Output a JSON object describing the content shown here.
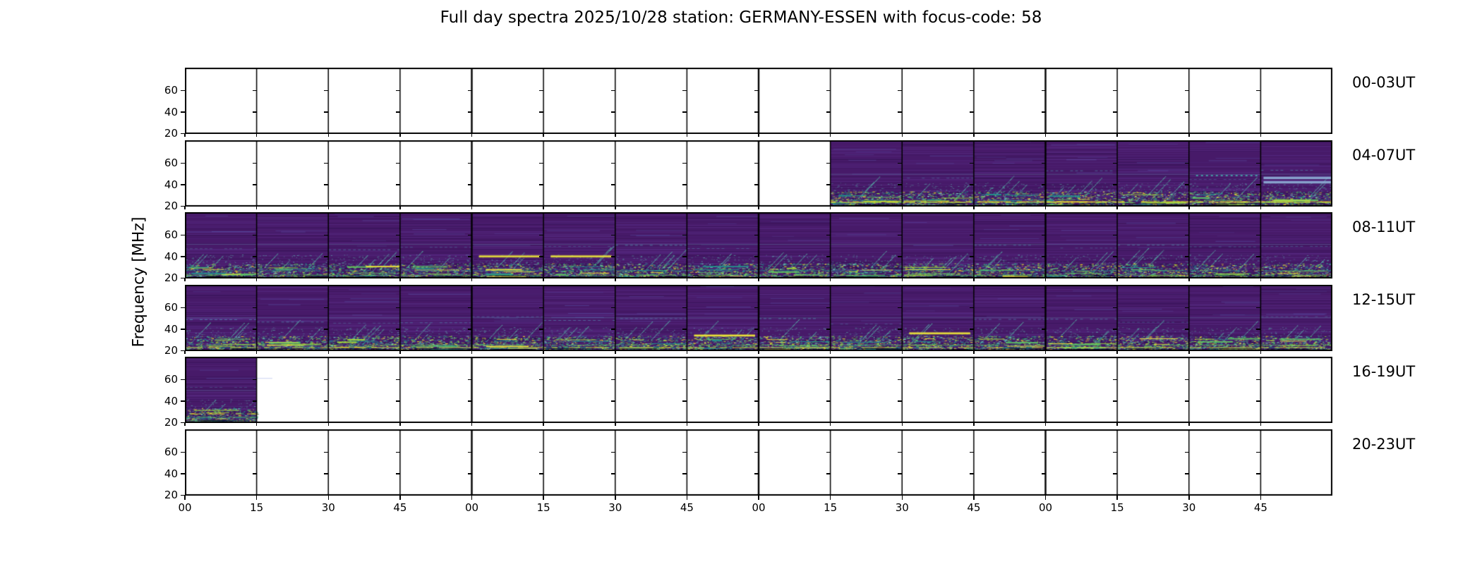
{
  "title": "Full day spectra 2025/10/28 station: GERMANY-ESSEN with focus-code: 58",
  "ylabel": "Frequency [MHz]",
  "chart_data": {
    "type": "heatmap",
    "colormap": "viridis",
    "title": "Full day spectra 2025/10/28 station: GERMANY-ESSEN with focus-code: 58",
    "ylabel": "Frequency [MHz]",
    "station": "GERMANY-ESSEN",
    "date": "2025/10/28",
    "focus_code": "58",
    "freq_axis": {
      "min_mhz": 20,
      "max_mhz": 81,
      "ticks": [
        60,
        40,
        20
      ],
      "tick_labels": [
        "60",
        "40",
        "20"
      ],
      "unit": "MHz"
    },
    "minutes_per_panel": 15,
    "panels_per_row": 16,
    "x_tick_labels": [
      "00",
      "15",
      "30",
      "45",
      "00",
      "15",
      "30",
      "45",
      "00",
      "15",
      "30",
      "45",
      "00",
      "15",
      "30",
      "45"
    ],
    "rows": [
      {
        "label": "00-03UT",
        "filled_segments": []
      },
      {
        "label": "04-07UT",
        "filled_segments": [
          [
            9,
            15
          ]
        ]
      },
      {
        "label": "08-11UT",
        "filled_segments": [
          [
            0,
            15
          ]
        ]
      },
      {
        "label": "12-15UT",
        "filled_segments": [
          [
            0,
            15
          ]
        ]
      },
      {
        "label": "16-19UT",
        "filled_segments": [
          [
            0,
            0
          ]
        ]
      },
      {
        "label": "20-23UT",
        "filled_segments": []
      }
    ],
    "notable_features": [
      {
        "row": 1,
        "panel": 14,
        "kind": "teal-dotted-line",
        "freq_mhz": 49
      },
      {
        "row": 1,
        "panel": 15,
        "kind": "cyan-band",
        "freq_mhz": 45
      },
      {
        "row": 2,
        "panel": 4,
        "kind": "yellow-line",
        "freq_mhz": 41
      },
      {
        "row": 2,
        "panel": 5,
        "kind": "yellow-line",
        "freq_mhz": 41
      },
      {
        "row": 3,
        "panel": 7,
        "kind": "yellow-line",
        "freq_mhz": 35
      },
      {
        "row": 3,
        "panel": 10,
        "kind": "yellow-line",
        "freq_mhz": 37
      }
    ],
    "colors": {
      "figure_background": "#ffffff",
      "axes": "#000000",
      "spectrogram_base": "#471a69",
      "band_palette": [
        "#2a6f8e",
        "#21918c",
        "#35b779",
        "#5ec962",
        "#a0da39",
        "#fde725",
        "#7ad1c0",
        "#1f0f44"
      ],
      "bright_line_yellow": "#ede639",
      "cyan_band": "#8fb0d8"
    }
  }
}
